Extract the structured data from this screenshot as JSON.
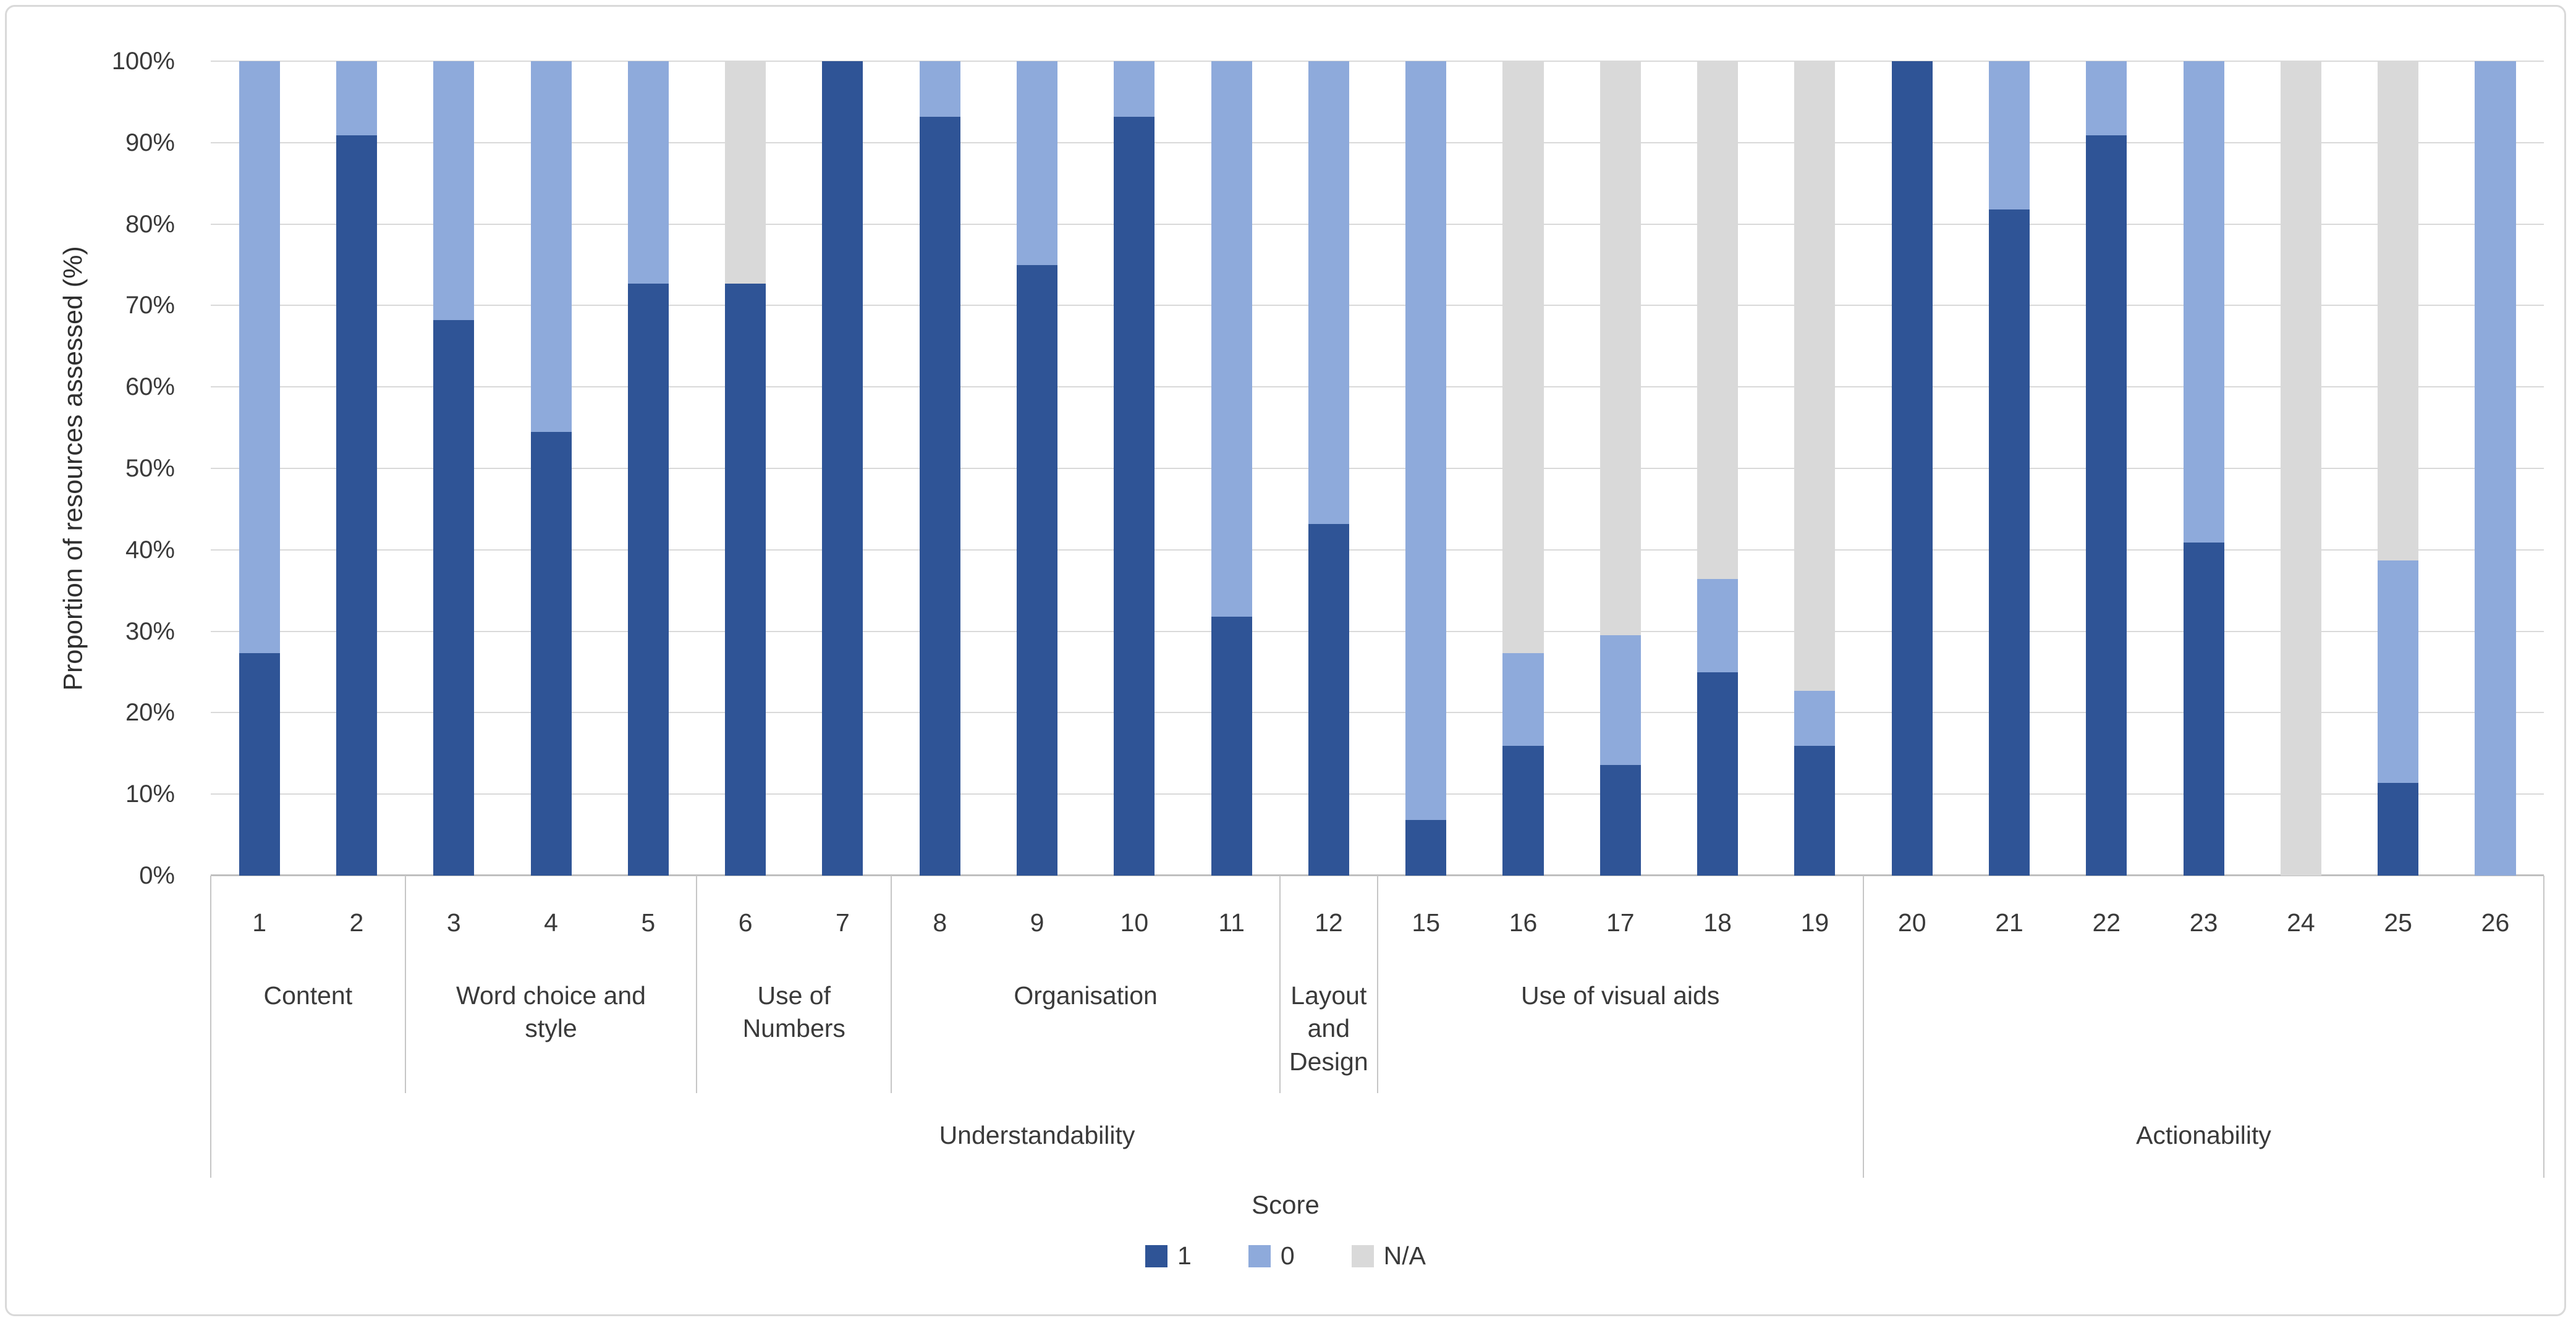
{
  "chart_data": {
    "type": "bar",
    "stacked": true,
    "title": "",
    "ylabel": "Proportion of resources assessed (%)",
    "xlabel": "",
    "ylim": [
      0,
      100
    ],
    "y_tick_step": 10,
    "y_ticks": [
      "0%",
      "10%",
      "20%",
      "30%",
      "40%",
      "50%",
      "60%",
      "70%",
      "80%",
      "90%",
      "100%"
    ],
    "grid": "horizontal",
    "legend_position": "bottom",
    "categories": [
      "1",
      "2",
      "3",
      "4",
      "5",
      "6",
      "7",
      "8",
      "9",
      "10",
      "11",
      "12",
      "15",
      "16",
      "17",
      "18",
      "19",
      "20",
      "21",
      "22",
      "23",
      "24",
      "25",
      "26"
    ],
    "series": [
      {
        "name": "1",
        "color": "#2F5496",
        "values": [
          27.3,
          90.9,
          68.2,
          54.5,
          72.7,
          72.7,
          100,
          93.2,
          75,
          93.2,
          31.8,
          43.2,
          6.8,
          15.9,
          13.6,
          25,
          15.9,
          100,
          81.8,
          90.9,
          40.9,
          0,
          11.4,
          0
        ]
      },
      {
        "name": "0",
        "color": "#8EAADB",
        "values": [
          72.7,
          9.1,
          31.8,
          45.5,
          27.3,
          0,
          0,
          6.8,
          25,
          6.8,
          68.2,
          56.8,
          93.2,
          11.4,
          15.9,
          11.4,
          6.8,
          0,
          18.2,
          9.1,
          59.1,
          0,
          27.3,
          100
        ]
      },
      {
        "name": "N/A",
        "color": "#D9D9D9",
        "values": [
          0,
          0,
          0,
          0,
          0,
          27.3,
          0,
          0,
          0,
          0,
          0,
          0,
          0,
          72.7,
          70.5,
          63.6,
          77.3,
          0,
          0,
          0,
          0,
          100,
          61.3,
          0
        ]
      }
    ],
    "subgroups": [
      {
        "label": "Content",
        "lines": [
          "Content"
        ],
        "span": 2
      },
      {
        "label": "Word choice and style",
        "lines": [
          "Word choice and",
          "style"
        ],
        "span": 3
      },
      {
        "label": "Use of Numbers",
        "lines": [
          "Use of",
          "Numbers"
        ],
        "span": 2
      },
      {
        "label": "Organisation",
        "lines": [
          "Organisation"
        ],
        "span": 4
      },
      {
        "label": "Layout and Design",
        "lines": [
          "Layout",
          "and",
          "Design"
        ],
        "span": 1
      },
      {
        "label": "Use of visual aids",
        "lines": [
          "Use of visual aids"
        ],
        "span": 5
      },
      {
        "label": "",
        "lines": [
          ""
        ],
        "span": 7
      }
    ],
    "groups": [
      {
        "label": "Understandability",
        "span": 17
      },
      {
        "label": "Actionability",
        "span": 7
      }
    ],
    "legend": {
      "title": "Score",
      "entries": [
        {
          "label": "1",
          "color": "#2F5496"
        },
        {
          "label": "0",
          "color": "#8EAADB"
        },
        {
          "label": "N/A",
          "color": "#D9D9D9"
        }
      ]
    },
    "colors": {
      "score_1": "#2F5496",
      "score_0": "#8EAADB",
      "score_na": "#D9D9D9",
      "gridline": "#D9D9D9",
      "axis_line": "#BFBFBF"
    }
  }
}
